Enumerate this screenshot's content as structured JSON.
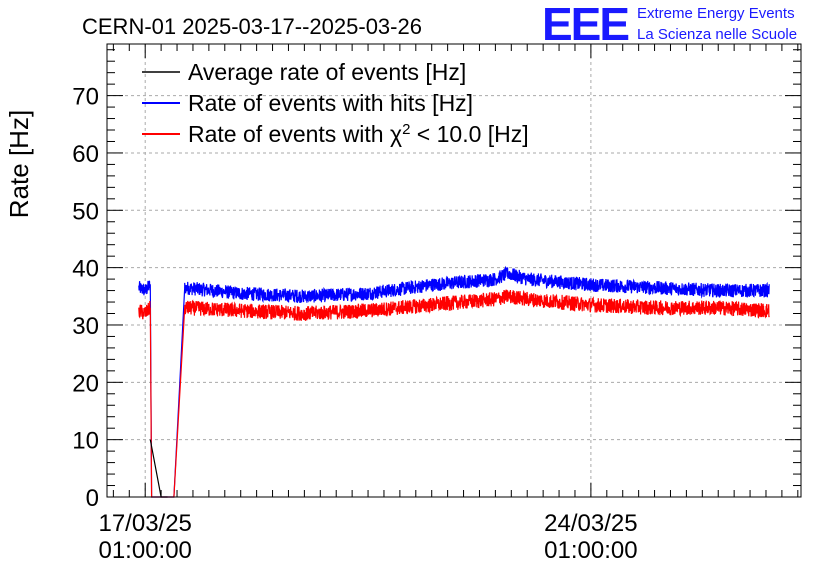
{
  "chart_data": {
    "type": "line",
    "title": "CERN-01 2025-03-17--2025-03-26",
    "ylabel": "Rate [Hz]",
    "xlabel": "",
    "ylim": [
      0,
      79
    ],
    "xrange_days": [
      -0.6,
      10.3
    ],
    "grid": true,
    "legend_position": "top-left",
    "y_ticks": [
      "0",
      "10",
      "20",
      "30",
      "40",
      "50",
      "60",
      "70"
    ],
    "x_ticks": [
      {
        "day": 0,
        "date": "17/03/25",
        "time": "01:00:00"
      },
      {
        "day": 7,
        "date": "24/03/25",
        "time": "01:00:00"
      }
    ],
    "series": [
      {
        "name": "Average rate of events [Hz]",
        "color": "#000000",
        "points": [
          [
            0.08,
            10
          ],
          [
            0.25,
            0
          ],
          [
            0.35,
            0
          ]
        ]
      },
      {
        "name": "Rate of events with hits [Hz]",
        "color": "#0000ff",
        "noise": 1.2,
        "points": [
          [
            -0.1,
            36.5
          ],
          [
            0.0,
            36
          ],
          [
            0.08,
            37
          ],
          [
            0.1,
            0
          ],
          [
            0.45,
            0
          ],
          [
            0.62,
            36.5
          ],
          [
            1.5,
            35.5
          ],
          [
            2.5,
            35
          ],
          [
            3.5,
            35.5
          ],
          [
            4.5,
            37
          ],
          [
            5.5,
            38
          ],
          [
            5.7,
            39
          ],
          [
            6.0,
            38
          ],
          [
            7.0,
            37
          ],
          [
            8.0,
            36.5
          ],
          [
            9.0,
            36
          ],
          [
            9.8,
            36
          ]
        ]
      },
      {
        "name": "Rate of events with χ² < 10.0 [Hz]",
        "legend_prefix": "Rate of events with ",
        "legend_chi": "χ",
        "legend_sup": "2",
        "legend_suffix": " < 10.0 [Hz]",
        "color": "#ff0000",
        "noise": 1.3,
        "points": [
          [
            -0.1,
            32.5
          ],
          [
            0.0,
            32
          ],
          [
            0.08,
            33
          ],
          [
            0.1,
            0
          ],
          [
            0.45,
            0
          ],
          [
            0.62,
            33
          ],
          [
            1.5,
            32.5
          ],
          [
            2.5,
            32
          ],
          [
            3.5,
            32.5
          ],
          [
            4.5,
            33.5
          ],
          [
            5.5,
            34.5
          ],
          [
            5.7,
            35
          ],
          [
            6.0,
            34.5
          ],
          [
            7.0,
            33.5
          ],
          [
            8.0,
            33
          ],
          [
            9.0,
            33
          ],
          [
            9.8,
            32.5
          ]
        ]
      }
    ]
  },
  "logo": {
    "mark": "EEE",
    "line1": "Extreme Energy Events",
    "line2": "La Scienza nelle Scuole"
  }
}
